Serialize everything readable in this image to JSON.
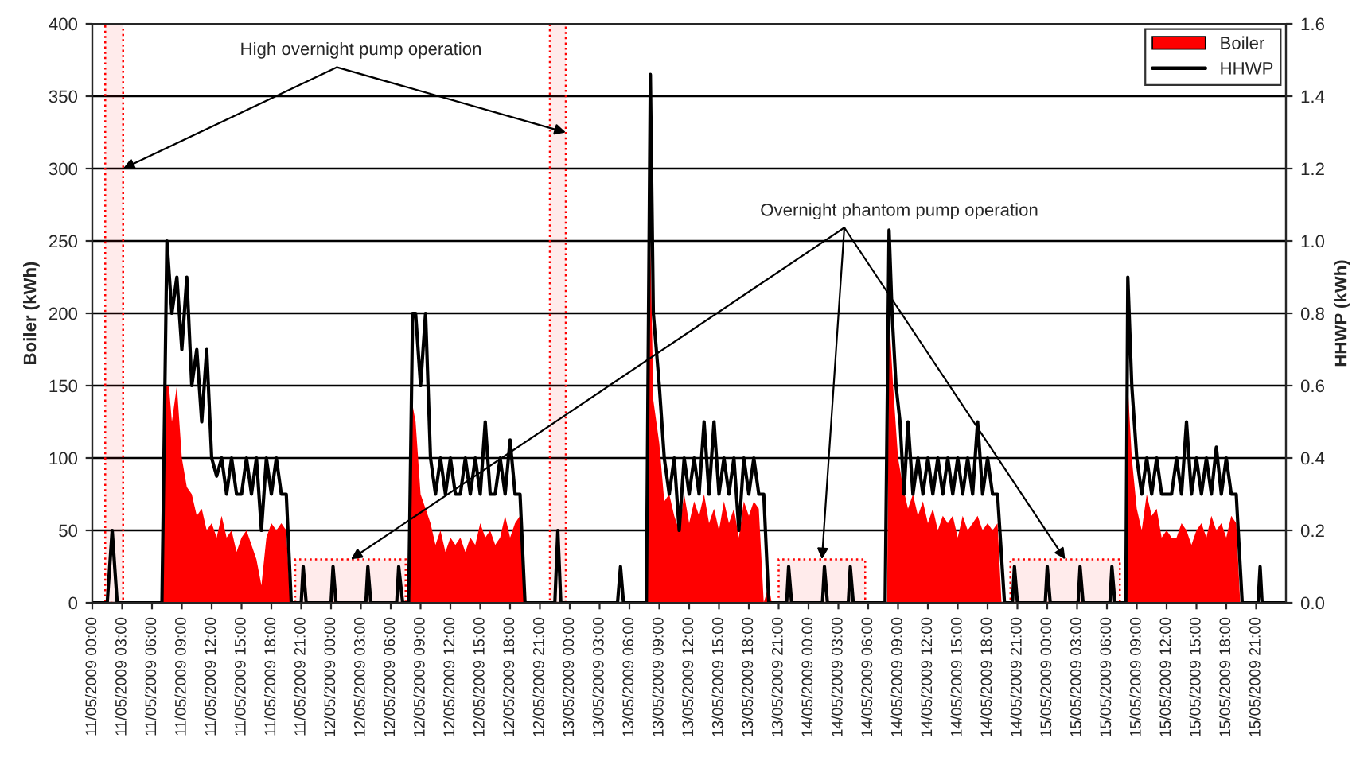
{
  "chart_data": {
    "type": "area",
    "ylabel": "Boiler (kWh)",
    "y2label": "HHWP (kWh)",
    "xlim": [
      "2009-05-11T00:00",
      "2009-05-16T00:00"
    ],
    "ylim": [
      0,
      400
    ],
    "yticks": [
      0,
      50,
      100,
      150,
      200,
      250,
      300,
      350,
      400
    ],
    "y2lim": [
      0,
      1.6
    ],
    "y2ticks": [
      {
        "value": 0,
        "label": "0.0"
      },
      0.2,
      0.4,
      0.6,
      0.8,
      {
        "value": 1,
        "label": "1.0"
      },
      1.2,
      1.4,
      1.6
    ],
    "xticks": [
      {
        "value": "2009-05-11T00:00",
        "label": "11/05/2009 00:00"
      },
      {
        "value": "2009-05-11T03:00",
        "label": "11/05/2009 03:00"
      },
      {
        "value": "2009-05-11T06:00",
        "label": "11/05/2009 06:00"
      },
      {
        "value": "2009-05-11T09:00",
        "label": "11/05/2009 09:00"
      },
      {
        "value": "2009-05-11T12:00",
        "label": "11/05/2009 12:00"
      },
      {
        "value": "2009-05-11T15:00",
        "label": "11/05/2009 15:00"
      },
      {
        "value": "2009-05-11T18:00",
        "label": "11/05/2009 18:00"
      },
      {
        "value": "2009-05-11T21:00",
        "label": "11/05/2009 21:00"
      },
      {
        "value": "2009-05-12T00:00",
        "label": "12/05/2009 00:00"
      },
      {
        "value": "2009-05-12T03:00",
        "label": "12/05/2009 03:00"
      },
      {
        "value": "2009-05-12T06:00",
        "label": "12/05/2009 06:00"
      },
      {
        "value": "2009-05-12T09:00",
        "label": "12/05/2009 09:00"
      },
      {
        "value": "2009-05-12T12:00",
        "label": "12/05/2009 12:00"
      },
      {
        "value": "2009-05-12T15:00",
        "label": "12/05/2009 15:00"
      },
      {
        "value": "2009-05-12T18:00",
        "label": "12/05/2009 18:00"
      },
      {
        "value": "2009-05-12T21:00",
        "label": "12/05/2009 21:00"
      },
      {
        "value": "2009-05-13T00:00",
        "label": "13/05/2009 00:00"
      },
      {
        "value": "2009-05-13T03:00",
        "label": "13/05/2009 03:00"
      },
      {
        "value": "2009-05-13T06:00",
        "label": "13/05/2009 06:00"
      },
      {
        "value": "2009-05-13T09:00",
        "label": "13/05/2009 09:00"
      },
      {
        "value": "2009-05-13T12:00",
        "label": "13/05/2009 12:00"
      },
      {
        "value": "2009-05-13T15:00",
        "label": "13/05/2009 15:00"
      },
      {
        "value": "2009-05-13T18:00",
        "label": "13/05/2009 18:00"
      },
      {
        "value": "2009-05-13T21:00",
        "label": "13/05/2009 21:00"
      },
      {
        "value": "2009-05-14T00:00",
        "label": "14/05/2009 00:00"
      },
      {
        "value": "2009-05-14T03:00",
        "label": "14/05/2009 03:00"
      },
      {
        "value": "2009-05-14T06:00",
        "label": "14/05/2009 06:00"
      },
      {
        "value": "2009-05-14T09:00",
        "label": "14/05/2009 09:00"
      },
      {
        "value": "2009-05-14T12:00",
        "label": "14/05/2009 12:00"
      },
      {
        "value": "2009-05-14T15:00",
        "label": "14/05/2009 15:00"
      },
      {
        "value": "2009-05-14T18:00",
        "label": "14/05/2009 18:00"
      },
      {
        "value": "2009-05-14T21:00",
        "label": "14/05/2009 21:00"
      },
      {
        "value": "2009-05-15T00:00",
        "label": "15/05/2009 00:00"
      },
      {
        "value": "2009-05-15T03:00",
        "label": "15/05/2009 03:00"
      },
      {
        "value": "2009-05-15T06:00",
        "label": "15/05/2009 06:00"
      },
      {
        "value": "2009-05-15T09:00",
        "label": "15/05/2009 09:00"
      },
      {
        "value": "2009-05-15T12:00",
        "label": "15/05/2009 12:00"
      },
      {
        "value": "2009-05-15T15:00",
        "label": "15/05/2009 15:00"
      },
      {
        "value": "2009-05-15T18:00",
        "label": "15/05/2009 18:00"
      },
      {
        "value": "2009-05-15T21:00",
        "label": "15/05/2009 21:00"
      }
    ],
    "grid": "y",
    "legend": "top right",
    "series": [
      {
        "name": "Boiler",
        "color": "#ff0000",
        "x": [
          "2009-05-11T00:00",
          "2009-05-11T07:00",
          "2009-05-11T07:18",
          "2009-05-11T07:42",
          "2009-05-11T08:00",
          "2009-05-11T08:30",
          "2009-05-11T09:00",
          "2009-05-11T09:30",
          "2009-05-11T10:00",
          "2009-05-11T10:30",
          "2009-05-11T11:00",
          "2009-05-11T11:30",
          "2009-05-11T12:00",
          "2009-05-11T12:30",
          "2009-05-11T13:00",
          "2009-05-11T13:30",
          "2009-05-11T14:00",
          "2009-05-11T14:30",
          "2009-05-11T15:00",
          "2009-05-11T15:30",
          "2009-05-11T16:00",
          "2009-05-11T16:30",
          "2009-05-11T17:00",
          "2009-05-11T17:30",
          "2009-05-11T18:00",
          "2009-05-11T18:30",
          "2009-05-11T19:00",
          "2009-05-11T19:30",
          "2009-05-11T19:54",
          "2009-05-12T07:54",
          "2009-05-12T08:06",
          "2009-05-12T08:30",
          "2009-05-12T09:00",
          "2009-05-12T09:30",
          "2009-05-12T10:00",
          "2009-05-12T10:30",
          "2009-05-12T11:00",
          "2009-05-12T11:30",
          "2009-05-12T12:00",
          "2009-05-12T12:30",
          "2009-05-12T13:00",
          "2009-05-12T13:30",
          "2009-05-12T14:00",
          "2009-05-12T14:30",
          "2009-05-12T15:00",
          "2009-05-12T15:30",
          "2009-05-12T16:00",
          "2009-05-12T16:30",
          "2009-05-12T17:00",
          "2009-05-12T17:30",
          "2009-05-12T18:00",
          "2009-05-12T18:30",
          "2009-05-12T19:00",
          "2009-05-12T19:30",
          "2009-05-13T07:48",
          "2009-05-13T08:06",
          "2009-05-13T08:24",
          "2009-05-13T09:00",
          "2009-05-13T09:30",
          "2009-05-13T10:00",
          "2009-05-13T10:30",
          "2009-05-13T11:00",
          "2009-05-13T11:30",
          "2009-05-13T12:00",
          "2009-05-13T12:30",
          "2009-05-13T13:00",
          "2009-05-13T13:30",
          "2009-05-13T14:00",
          "2009-05-13T14:30",
          "2009-05-13T15:00",
          "2009-05-13T15:30",
          "2009-05-13T16:00",
          "2009-05-13T16:30",
          "2009-05-13T17:00",
          "2009-05-13T17:30",
          "2009-05-13T18:00",
          "2009-05-13T18:30",
          "2009-05-13T19:00",
          "2009-05-13T19:30",
          "2009-05-13T20:00",
          "2009-05-13T20:18",
          "2009-05-14T07:54",
          "2009-05-14T08:06",
          "2009-05-14T08:30",
          "2009-05-14T09:00",
          "2009-05-14T09:30",
          "2009-05-14T10:00",
          "2009-05-14T10:30",
          "2009-05-14T11:00",
          "2009-05-14T11:30",
          "2009-05-14T12:00",
          "2009-05-14T12:30",
          "2009-05-14T13:00",
          "2009-05-14T13:30",
          "2009-05-14T14:00",
          "2009-05-14T14:30",
          "2009-05-14T15:00",
          "2009-05-14T15:30",
          "2009-05-14T16:00",
          "2009-05-14T16:30",
          "2009-05-14T17:00",
          "2009-05-14T17:30",
          "2009-05-14T18:00",
          "2009-05-14T18:30",
          "2009-05-14T19:00",
          "2009-05-14T19:24",
          "2009-05-15T08:00",
          "2009-05-15T08:06",
          "2009-05-15T08:30",
          "2009-05-15T09:00",
          "2009-05-15T09:30",
          "2009-05-15T10:00",
          "2009-05-15T10:30",
          "2009-05-15T11:00",
          "2009-05-15T11:30",
          "2009-05-15T12:00",
          "2009-05-15T12:30",
          "2009-05-15T13:00",
          "2009-05-15T13:30",
          "2009-05-15T14:00",
          "2009-05-15T14:30",
          "2009-05-15T15:00",
          "2009-05-15T15:30",
          "2009-05-15T16:00",
          "2009-05-15T16:30",
          "2009-05-15T17:00",
          "2009-05-15T17:30",
          "2009-05-15T18:00",
          "2009-05-15T18:30",
          "2009-05-15T19:00",
          "2009-05-15T19:24",
          "2009-05-16T00:00"
        ],
        "values": [
          0,
          0,
          150,
          150,
          125,
          150,
          100,
          80,
          75,
          60,
          65,
          50,
          55,
          45,
          60,
          45,
          50,
          35,
          45,
          50,
          40,
          30,
          12,
          45,
          55,
          50,
          55,
          50,
          0,
          0,
          140,
          125,
          75,
          65,
          55,
          40,
          50,
          35,
          45,
          40,
          45,
          35,
          45,
          40,
          55,
          45,
          50,
          40,
          45,
          60,
          45,
          55,
          60,
          0,
          0,
          250,
          140,
          110,
          70,
          75,
          60,
          50,
          75,
          55,
          70,
          60,
          75,
          55,
          65,
          50,
          70,
          55,
          65,
          45,
          70,
          60,
          70,
          65,
          0,
          12,
          0,
          0,
          200,
          150,
          100,
          80,
          65,
          75,
          60,
          70,
          55,
          65,
          50,
          60,
          55,
          60,
          45,
          60,
          50,
          55,
          60,
          50,
          55,
          50,
          55,
          0,
          0,
          150,
          100,
          65,
          50,
          75,
          60,
          65,
          45,
          50,
          45,
          45,
          55,
          50,
          40,
          50,
          55,
          45,
          60,
          50,
          55,
          45,
          60,
          55,
          0,
          0
        ]
      },
      {
        "name": "HHWP",
        "type": "line",
        "axis": "y2",
        "color": "#000000",
        "x": [
          "2009-05-11T00:00",
          "2009-05-11T01:30",
          "2009-05-11T02:00",
          "2009-05-11T02:30",
          "2009-05-11T07:00",
          "2009-05-11T07:30",
          "2009-05-11T08:00",
          "2009-05-11T08:30",
          "2009-05-11T09:00",
          "2009-05-11T09:30",
          "2009-05-11T10:00",
          "2009-05-11T10:30",
          "2009-05-11T11:00",
          "2009-05-11T11:30",
          "2009-05-11T12:00",
          "2009-05-11T12:30",
          "2009-05-11T13:00",
          "2009-05-11T13:30",
          "2009-05-11T14:00",
          "2009-05-11T14:30",
          "2009-05-11T15:00",
          "2009-05-11T15:30",
          "2009-05-11T16:00",
          "2009-05-11T16:30",
          "2009-05-11T17:00",
          "2009-05-11T17:30",
          "2009-05-11T18:00",
          "2009-05-11T18:30",
          "2009-05-11T19:00",
          "2009-05-11T19:30",
          "2009-05-11T20:00",
          "2009-05-11T21:00",
          "2009-05-11T21:12",
          "2009-05-11T21:30",
          "2009-05-12T00:00",
          "2009-05-12T00:12",
          "2009-05-12T00:30",
          "2009-05-12T03:30",
          "2009-05-12T03:42",
          "2009-05-12T04:00",
          "2009-05-12T06:36",
          "2009-05-12T06:48",
          "2009-05-12T07:12",
          "2009-05-12T07:48",
          "2009-05-12T08:12",
          "2009-05-12T08:30",
          "2009-05-12T09:00",
          "2009-05-12T09:30",
          "2009-05-12T10:00",
          "2009-05-12T10:30",
          "2009-05-12T11:00",
          "2009-05-12T11:30",
          "2009-05-12T12:00",
          "2009-05-12T12:30",
          "2009-05-12T13:00",
          "2009-05-12T13:30",
          "2009-05-12T14:00",
          "2009-05-12T14:30",
          "2009-05-12T15:00",
          "2009-05-12T15:30",
          "2009-05-12T16:00",
          "2009-05-12T16:30",
          "2009-05-12T17:00",
          "2009-05-12T17:30",
          "2009-05-12T18:00",
          "2009-05-12T18:30",
          "2009-05-12T19:00",
          "2009-05-12T19:30",
          "2009-05-12T22:30",
          "2009-05-12T22:48",
          "2009-05-12T23:06",
          "2009-05-13T04:48",
          "2009-05-13T05:06",
          "2009-05-13T05:24",
          "2009-05-13T07:42",
          "2009-05-13T08:06",
          "2009-05-13T08:24",
          "2009-05-13T09:00",
          "2009-05-13T09:30",
          "2009-05-13T10:00",
          "2009-05-13T10:30",
          "2009-05-13T11:00",
          "2009-05-13T11:30",
          "2009-05-13T12:00",
          "2009-05-13T12:30",
          "2009-05-13T13:00",
          "2009-05-13T13:30",
          "2009-05-13T14:00",
          "2009-05-13T14:30",
          "2009-05-13T15:00",
          "2009-05-13T15:30",
          "2009-05-13T16:00",
          "2009-05-13T16:30",
          "2009-05-13T17:00",
          "2009-05-13T17:30",
          "2009-05-13T18:00",
          "2009-05-13T18:30",
          "2009-05-13T19:00",
          "2009-05-13T19:30",
          "2009-05-13T20:00",
          "2009-05-13T21:48",
          "2009-05-13T22:00",
          "2009-05-13T22:18",
          "2009-05-14T01:24",
          "2009-05-14T01:36",
          "2009-05-14T01:54",
          "2009-05-14T04:00",
          "2009-05-14T04:12",
          "2009-05-14T04:30",
          "2009-05-14T07:42",
          "2009-05-14T08:06",
          "2009-05-14T08:24",
          "2009-05-14T08:48",
          "2009-05-14T09:12",
          "2009-05-14T09:36",
          "2009-05-14T10:00",
          "2009-05-14T10:30",
          "2009-05-14T11:00",
          "2009-05-14T11:30",
          "2009-05-14T12:00",
          "2009-05-14T12:30",
          "2009-05-14T13:00",
          "2009-05-14T13:30",
          "2009-05-14T14:00",
          "2009-05-14T14:30",
          "2009-05-14T15:00",
          "2009-05-14T15:30",
          "2009-05-14T16:00",
          "2009-05-14T16:30",
          "2009-05-14T17:00",
          "2009-05-14T17:30",
          "2009-05-14T18:00",
          "2009-05-14T18:30",
          "2009-05-14T19:00",
          "2009-05-14T19:42",
          "2009-05-14T20:30",
          "2009-05-14T20:42",
          "2009-05-14T21:00",
          "2009-05-14T23:48",
          "2009-05-15T00:00",
          "2009-05-15T00:18",
          "2009-05-15T03:06",
          "2009-05-15T03:18",
          "2009-05-15T03:36",
          "2009-05-15T06:18",
          "2009-05-15T06:30",
          "2009-05-15T06:48",
          "2009-05-15T07:54",
          "2009-05-15T08:06",
          "2009-05-15T08:30",
          "2009-05-15T09:00",
          "2009-05-15T09:30",
          "2009-05-15T10:00",
          "2009-05-15T10:30",
          "2009-05-15T11:00",
          "2009-05-15T11:30",
          "2009-05-15T12:00",
          "2009-05-15T12:30",
          "2009-05-15T13:00",
          "2009-05-15T13:30",
          "2009-05-15T14:00",
          "2009-05-15T14:30",
          "2009-05-15T15:00",
          "2009-05-15T15:30",
          "2009-05-15T16:00",
          "2009-05-15T16:30",
          "2009-05-15T17:00",
          "2009-05-15T17:30",
          "2009-05-15T18:00",
          "2009-05-15T18:30",
          "2009-05-15T19:00",
          "2009-05-15T19:36",
          "2009-05-15T21:12",
          "2009-05-15T21:24",
          "2009-05-15T21:36",
          "2009-05-16T00:00"
        ],
        "values": [
          0,
          0,
          0.2,
          0,
          0,
          1.0,
          0.8,
          0.9,
          0.7,
          0.9,
          0.6,
          0.7,
          0.5,
          0.7,
          0.4,
          0.35,
          0.4,
          0.3,
          0.4,
          0.3,
          0.3,
          0.4,
          0.3,
          0.4,
          0.2,
          0.4,
          0.3,
          0.4,
          0.3,
          0.3,
          0,
          0,
          0.1,
          0,
          0,
          0.1,
          0,
          0,
          0.1,
          0,
          0,
          0.1,
          0,
          0,
          0.8,
          0.8,
          0.6,
          0.8,
          0.4,
          0.3,
          0.4,
          0.3,
          0.4,
          0.3,
          0.3,
          0.4,
          0.3,
          0.4,
          0.3,
          0.5,
          0.3,
          0.3,
          0.4,
          0.3,
          0.45,
          0.3,
          0.3,
          0,
          0,
          0.2,
          0,
          0,
          0.1,
          0,
          0,
          1.46,
          0.8,
          0.6,
          0.4,
          0.3,
          0.4,
          0.2,
          0.4,
          0.3,
          0.4,
          0.3,
          0.5,
          0.3,
          0.5,
          0.3,
          0.4,
          0.3,
          0.4,
          0.2,
          0.4,
          0.3,
          0.4,
          0.3,
          0.3,
          0,
          0,
          0.1,
          0,
          0,
          0.1,
          0,
          0,
          0.1,
          0,
          0,
          1.03,
          0.8,
          0.6,
          0.5,
          0.3,
          0.5,
          0.3,
          0.4,
          0.3,
          0.4,
          0.3,
          0.4,
          0.3,
          0.4,
          0.3,
          0.4,
          0.3,
          0.4,
          0.3,
          0.5,
          0.3,
          0.4,
          0.3,
          0.3,
          0,
          0,
          0.1,
          0,
          0,
          0.1,
          0,
          0,
          0.1,
          0,
          0,
          0.1,
          0,
          0,
          0.9,
          0.6,
          0.4,
          0.3,
          0.4,
          0.3,
          0.4,
          0.3,
          0.3,
          0.3,
          0.4,
          0.3,
          0.5,
          0.3,
          0.4,
          0.3,
          0.4,
          0.3,
          0.43,
          0.3,
          0.4,
          0.3,
          0.3,
          0,
          0,
          0.1,
          0,
          0
        ]
      }
    ],
    "annotations": [
      {
        "text": "High overnight pump operation",
        "x": "2009-05-11T03:06",
        "y": 300
      },
      {
        "text": "Overnight phantom pump operation",
        "x": "2009-05-12T02:00",
        "y": 30
      }
    ],
    "bands": [
      {
        "axis": "x",
        "from": "2009-05-11T01:18",
        "to": "2009-05-11T03:06",
        "color": "#ff0000"
      },
      {
        "axis": "x",
        "from": "2009-05-12T22:00",
        "to": "2009-05-12T23:36",
        "color": "#ff0000"
      },
      {
        "axis": "x",
        "from": "2009-05-11T20:24",
        "to": "2009-05-12T07:30",
        "color": "#ff0000"
      },
      {
        "axis": "x",
        "from": "2009-05-13T21:00",
        "to": "2009-05-14T05:42",
        "color": "#ff0000"
      },
      {
        "axis": "x",
        "from": "2009-05-14T20:18",
        "to": "2009-05-15T07:18",
        "color": "#ff0000"
      }
    ]
  }
}
